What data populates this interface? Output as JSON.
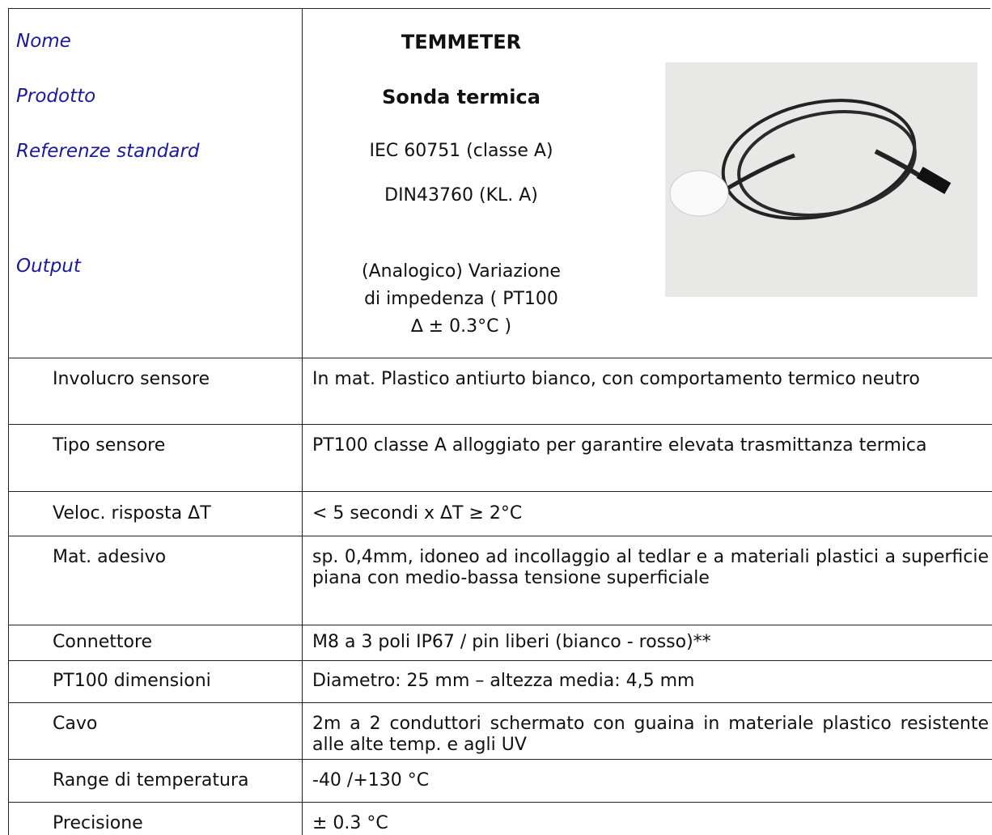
{
  "header": {
    "rows": [
      {
        "label": "Nome",
        "value": [
          "TEMMETER"
        ]
      },
      {
        "label": "Prodotto",
        "value": [
          "Sonda termica"
        ]
      },
      {
        "label": "Referenze standard",
        "value": [
          "IEC 60751 (classe A)",
          "DIN43760 (KL. A)"
        ]
      },
      {
        "label": "Output",
        "value": [
          "(Analogico) Variazione",
          "di impedenza ( PT100",
          "∆ ± 0.3°C )"
        ]
      }
    ]
  },
  "specs": {
    "rows": [
      [
        "Involucro sensore",
        "In mat. Plastico antiurto bianco, con comportamento termico neutro"
      ],
      [
        "Tipo sensore",
        "PT100 classe A alloggiato per garantire elevata trasmittanza termica"
      ],
      [
        "Veloc. risposta ΔT",
        "< 5 secondi x ΔT ≥ 2°C"
      ],
      [
        "Mat. adesivo",
        "sp. 0,4mm, idoneo ad incollaggio al tedlar e a materiali plastici a superficie piana con medio-bassa tensione superficiale"
      ],
      [
        "Connettore",
        "M8 a 3 poli IP67  /  pin liberi (bianco - rosso)**"
      ],
      [
        "PT100 dimensioni",
        "Diametro: 25 mm – altezza media: 4,5 mm"
      ],
      [
        "Cavo",
        "2m a 2 conduttori schermato con guaina in materiale plastico resistente alle alte temp. e agli UV"
      ],
      [
        "Range di temperatura",
        "-40 /+130 °C"
      ],
      [
        "Precisione",
        "± 0.3 °C"
      ]
    ]
  }
}
